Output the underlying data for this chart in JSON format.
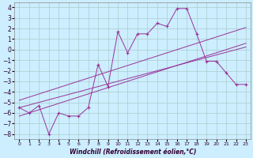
{
  "xlabel": "Windchill (Refroidissement éolien,°C)",
  "background_color": "#cceeff",
  "grid_color": "#aacccc",
  "line_color": "#993399",
  "x_hours": [
    0,
    1,
    2,
    3,
    4,
    5,
    6,
    7,
    8,
    9,
    10,
    11,
    12,
    13,
    14,
    15,
    16,
    17,
    18,
    19,
    20,
    21,
    22,
    23
  ],
  "windchill": [
    -5.5,
    -6.0,
    -5.3,
    -8.0,
    -6.0,
    -6.3,
    -6.3,
    -5.5,
    -1.4,
    -3.5,
    1.7,
    -0.3,
    1.5,
    1.5,
    2.5,
    2.2,
    3.9,
    3.9,
    1.5,
    -1.1,
    -1.1,
    -2.2,
    -3.3,
    -3.3
  ],
  "reg_upper": [
    -4.8,
    -4.5,
    -4.2,
    -3.9,
    -3.6,
    -3.3,
    -3.0,
    -2.7,
    -2.4,
    -2.1,
    -1.8,
    -1.5,
    -1.2,
    -0.9,
    -0.6,
    -0.3,
    0.0,
    0.3,
    0.6,
    0.9,
    1.2,
    1.5,
    1.8,
    2.1
  ],
  "reg_lower": [
    -6.3,
    -6.0,
    -5.7,
    -5.4,
    -5.1,
    -4.8,
    -4.5,
    -4.2,
    -3.9,
    -3.6,
    -3.3,
    -3.0,
    -2.7,
    -2.4,
    -2.1,
    -1.8,
    -1.5,
    -1.2,
    -0.9,
    -0.6,
    -0.3,
    0.0,
    0.3,
    0.6
  ],
  "reg_mid": [
    -5.5,
    -5.25,
    -5.0,
    -4.75,
    -4.5,
    -4.25,
    -4.0,
    -3.75,
    -3.5,
    -3.25,
    -3.0,
    -2.75,
    -2.5,
    -2.25,
    -2.0,
    -1.75,
    -1.5,
    -1.25,
    -1.0,
    -0.75,
    -0.5,
    -0.25,
    0.0,
    0.25
  ],
  "ylim": [
    -8.5,
    4.5
  ],
  "yticks": [
    -8,
    -7,
    -6,
    -5,
    -4,
    -3,
    -2,
    -1,
    0,
    1,
    2,
    3,
    4
  ],
  "xticks": [
    0,
    1,
    2,
    3,
    4,
    5,
    6,
    7,
    8,
    9,
    10,
    11,
    12,
    13,
    14,
    15,
    16,
    17,
    18,
    19,
    20,
    21,
    22,
    23
  ]
}
